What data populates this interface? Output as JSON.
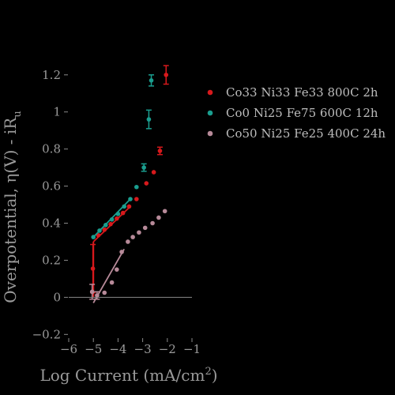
{
  "chart_data": {
    "type": "scatter",
    "title": "",
    "xlabel_main": "Log Current (mA/cm",
    "xlabel_sup": "2",
    "xlabel_end": ")",
    "ylabel_main": "Overpotential, η(V) - iR",
    "ylabel_sub": "u",
    "xlim": [
      -6,
      -1
    ],
    "ylim": [
      -0.22,
      1.28
    ],
    "xticks": [
      -6,
      -5,
      -4,
      -3,
      -2,
      -1
    ],
    "xtick_labels": [
      "−6",
      "−5",
      "−4",
      "−3",
      "−2",
      "−1"
    ],
    "yticks": [
      -0.2,
      0,
      0.2,
      0.4,
      0.6,
      0.8,
      1,
      1.2
    ],
    "ytick_labels": [
      "−0.2",
      "0",
      "0.2",
      "0.4",
      "0.6",
      "0.8",
      "1",
      "1.2"
    ],
    "zero_line": true,
    "grid": false,
    "legend_position": "top-right",
    "series": [
      {
        "name": "Co33 Ni33 Fe33 800C 2h",
        "color": "#d7191c",
        "points": [
          {
            "x": -5.02,
            "y": 0.155,
            "err": 0.13
          },
          {
            "x": -4.8,
            "y": 0.335,
            "err": 0.01
          },
          {
            "x": -4.55,
            "y": 0.365,
            "err": 0.01
          },
          {
            "x": -4.3,
            "y": 0.395,
            "err": 0.01
          },
          {
            "x": -4.05,
            "y": 0.425,
            "err": 0.01
          },
          {
            "x": -3.8,
            "y": 0.455,
            "err": 0.01
          },
          {
            "x": -3.55,
            "y": 0.49,
            "err": 0.01
          },
          {
            "x": -3.25,
            "y": 0.53,
            "err": 0.01
          },
          {
            "x": -2.85,
            "y": 0.615,
            "err": 0.01
          },
          {
            "x": -2.55,
            "y": 0.675,
            "err": 0.01
          },
          {
            "x": -2.3,
            "y": 0.79,
            "err": 0.02
          },
          {
            "x": -2.05,
            "y": 1.2,
            "err": 0.05
          }
        ],
        "fit_line": {
          "x": [
            -5.0,
            -3.5
          ],
          "y": [
            0.3,
            0.49
          ]
        },
        "vertical_segment": {
          "x": -5.0,
          "y": [
            0.0,
            0.3
          ]
        }
      },
      {
        "name": "Co0 Ni25 Fe75 600C 12h",
        "color": "#1a9e8f",
        "points": [
          {
            "x": -5.0,
            "y": 0.325,
            "err": 0.01
          },
          {
            "x": -4.75,
            "y": 0.36,
            "err": 0.01
          },
          {
            "x": -4.5,
            "y": 0.39,
            "err": 0.01
          },
          {
            "x": -4.25,
            "y": 0.42,
            "err": 0.01
          },
          {
            "x": -4.0,
            "y": 0.45,
            "err": 0.01
          },
          {
            "x": -3.75,
            "y": 0.49,
            "err": 0.01
          },
          {
            "x": -3.5,
            "y": 0.53,
            "err": 0.01
          },
          {
            "x": -3.25,
            "y": 0.595,
            "err": 0.01
          },
          {
            "x": -2.95,
            "y": 0.7,
            "err": 0.02
          },
          {
            "x": -2.75,
            "y": 0.96,
            "err": 0.05
          },
          {
            "x": -2.65,
            "y": 1.17,
            "err": 0.03
          }
        ],
        "fit_line": {
          "x": [
            -5.0,
            -3.5
          ],
          "y": [
            0.325,
            0.53
          ]
        }
      },
      {
        "name": "Co50 Ni25 Fe25 400C 24h",
        "color": "#b78a99",
        "points": [
          {
            "x": -5.05,
            "y": 0.03,
            "err": 0.04
          },
          {
            "x": -4.85,
            "y": 0.01,
            "err": 0.02
          },
          {
            "x": -4.55,
            "y": 0.025,
            "err": 0.01
          },
          {
            "x": -4.25,
            "y": 0.08,
            "err": 0.01
          },
          {
            "x": -4.05,
            "y": 0.15,
            "err": 0.01
          },
          {
            "x": -3.85,
            "y": 0.245,
            "err": 0.01
          },
          {
            "x": -3.6,
            "y": 0.3,
            "err": 0.01
          },
          {
            "x": -3.4,
            "y": 0.325,
            "err": 0.01
          },
          {
            "x": -3.15,
            "y": 0.35,
            "err": 0.01
          },
          {
            "x": -2.9,
            "y": 0.375,
            "err": 0.01
          },
          {
            "x": -2.6,
            "y": 0.4,
            "err": 0.01
          },
          {
            "x": -2.35,
            "y": 0.43,
            "err": 0.01
          },
          {
            "x": -2.1,
            "y": 0.465,
            "err": 0.01
          }
        ],
        "fit_line": {
          "x": [
            -5.0,
            -3.75
          ],
          "y": [
            -0.03,
            0.26
          ]
        }
      }
    ]
  }
}
